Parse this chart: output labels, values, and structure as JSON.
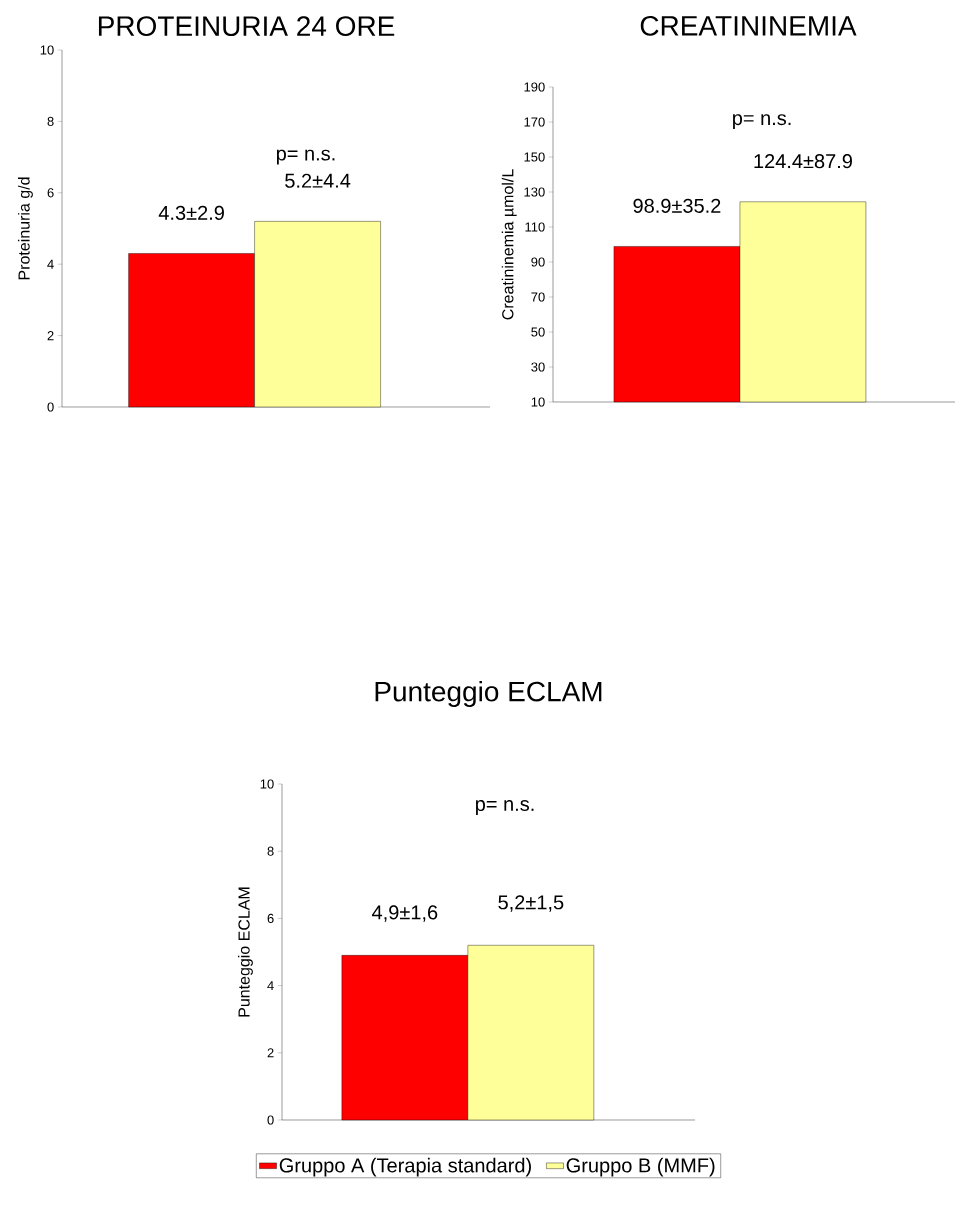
{
  "chart_data": [
    {
      "type": "bar",
      "title": "PROTEINURIA 24 ORE",
      "ylabel": "Proteinuria  g/d",
      "categories": [
        null
      ],
      "ylim": [
        0,
        10
      ],
      "yticks": [
        0,
        2,
        4,
        6,
        8,
        10
      ],
      "annotations": [
        "p= n.s."
      ],
      "legend": false,
      "series": [
        {
          "color": "#ff0000",
          "values": [
            4.3
          ],
          "value_labels": [
            "4.3±2.9"
          ]
        },
        {
          "color": "#ffff99",
          "values": [
            5.2
          ],
          "value_labels": [
            "5.2±4.4"
          ]
        }
      ]
    },
    {
      "type": "bar",
      "title": "CREATININEMIA",
      "ylabel": "Creatininemia µmol/L",
      "categories": [
        null
      ],
      "ylim": [
        10,
        190
      ],
      "yticks": [
        10,
        30,
        50,
        70,
        90,
        110,
        130,
        150,
        170,
        190
      ],
      "annotations": [
        "p= n.s."
      ],
      "legend": false,
      "series": [
        {
          "color": "#ff0000",
          "values": [
            98.9
          ],
          "value_labels": [
            "98.9±35.2"
          ]
        },
        {
          "color": "#ffff99",
          "values": [
            124.4
          ],
          "value_labels": [
            "124.4±87.9"
          ]
        }
      ]
    },
    {
      "type": "bar",
      "title": "Punteggio ECLAM",
      "ylabel": "Punteggio ECLAM",
      "categories": [
        null
      ],
      "ylim": [
        0,
        10
      ],
      "yticks": [
        0,
        2,
        4,
        6,
        8,
        10
      ],
      "annotations": [
        "p= n.s."
      ],
      "legend": "bottom",
      "series": [
        {
          "name": "Gruppo A (Terapia standard)",
          "color": "#ff0000",
          "values": [
            4.9
          ],
          "value_labels": [
            "4,9±1,6"
          ]
        },
        {
          "name": "Gruppo B (MMF)",
          "color": "#ffff99",
          "values": [
            5.2
          ],
          "value_labels": [
            "5,2±1,5"
          ]
        }
      ]
    }
  ]
}
